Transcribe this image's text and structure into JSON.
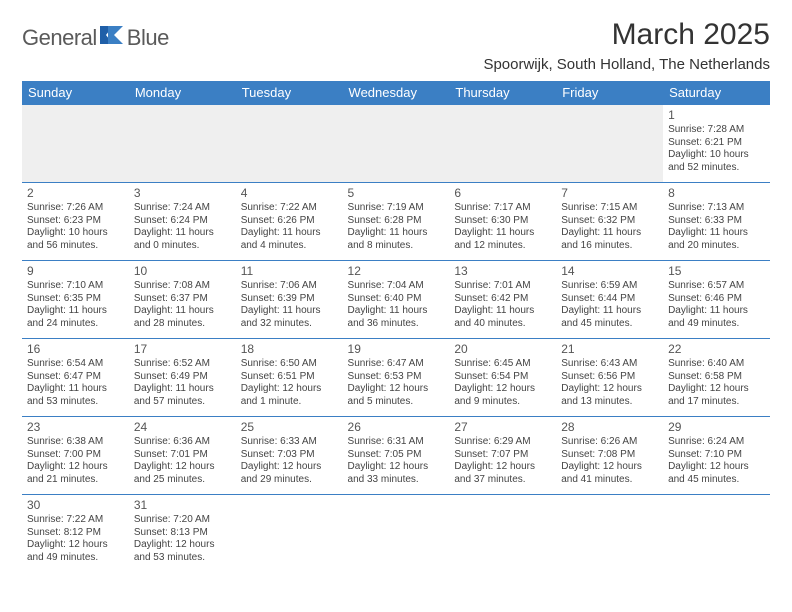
{
  "brand": {
    "name1": "General",
    "name2": "Blue"
  },
  "title": "March 2025",
  "location": "Spoorwijk, South Holland, The Netherlands",
  "colors": {
    "header_bg": "#3b7fc4",
    "header_fg": "#ffffff",
    "rule": "#3b7fc4",
    "empty_bg": "#efefef"
  },
  "daysOfWeek": [
    "Sunday",
    "Monday",
    "Tuesday",
    "Wednesday",
    "Thursday",
    "Friday",
    "Saturday"
  ],
  "weeks": [
    [
      null,
      null,
      null,
      null,
      null,
      null,
      {
        "n": "1",
        "sr": "Sunrise: 7:28 AM",
        "ss": "Sunset: 6:21 PM",
        "dl1": "Daylight: 10 hours",
        "dl2": "and 52 minutes."
      }
    ],
    [
      {
        "n": "2",
        "sr": "Sunrise: 7:26 AM",
        "ss": "Sunset: 6:23 PM",
        "dl1": "Daylight: 10 hours",
        "dl2": "and 56 minutes."
      },
      {
        "n": "3",
        "sr": "Sunrise: 7:24 AM",
        "ss": "Sunset: 6:24 PM",
        "dl1": "Daylight: 11 hours",
        "dl2": "and 0 minutes."
      },
      {
        "n": "4",
        "sr": "Sunrise: 7:22 AM",
        "ss": "Sunset: 6:26 PM",
        "dl1": "Daylight: 11 hours",
        "dl2": "and 4 minutes."
      },
      {
        "n": "5",
        "sr": "Sunrise: 7:19 AM",
        "ss": "Sunset: 6:28 PM",
        "dl1": "Daylight: 11 hours",
        "dl2": "and 8 minutes."
      },
      {
        "n": "6",
        "sr": "Sunrise: 7:17 AM",
        "ss": "Sunset: 6:30 PM",
        "dl1": "Daylight: 11 hours",
        "dl2": "and 12 minutes."
      },
      {
        "n": "7",
        "sr": "Sunrise: 7:15 AM",
        "ss": "Sunset: 6:32 PM",
        "dl1": "Daylight: 11 hours",
        "dl2": "and 16 minutes."
      },
      {
        "n": "8",
        "sr": "Sunrise: 7:13 AM",
        "ss": "Sunset: 6:33 PM",
        "dl1": "Daylight: 11 hours",
        "dl2": "and 20 minutes."
      }
    ],
    [
      {
        "n": "9",
        "sr": "Sunrise: 7:10 AM",
        "ss": "Sunset: 6:35 PM",
        "dl1": "Daylight: 11 hours",
        "dl2": "and 24 minutes."
      },
      {
        "n": "10",
        "sr": "Sunrise: 7:08 AM",
        "ss": "Sunset: 6:37 PM",
        "dl1": "Daylight: 11 hours",
        "dl2": "and 28 minutes."
      },
      {
        "n": "11",
        "sr": "Sunrise: 7:06 AM",
        "ss": "Sunset: 6:39 PM",
        "dl1": "Daylight: 11 hours",
        "dl2": "and 32 minutes."
      },
      {
        "n": "12",
        "sr": "Sunrise: 7:04 AM",
        "ss": "Sunset: 6:40 PM",
        "dl1": "Daylight: 11 hours",
        "dl2": "and 36 minutes."
      },
      {
        "n": "13",
        "sr": "Sunrise: 7:01 AM",
        "ss": "Sunset: 6:42 PM",
        "dl1": "Daylight: 11 hours",
        "dl2": "and 40 minutes."
      },
      {
        "n": "14",
        "sr": "Sunrise: 6:59 AM",
        "ss": "Sunset: 6:44 PM",
        "dl1": "Daylight: 11 hours",
        "dl2": "and 45 minutes."
      },
      {
        "n": "15",
        "sr": "Sunrise: 6:57 AM",
        "ss": "Sunset: 6:46 PM",
        "dl1": "Daylight: 11 hours",
        "dl2": "and 49 minutes."
      }
    ],
    [
      {
        "n": "16",
        "sr": "Sunrise: 6:54 AM",
        "ss": "Sunset: 6:47 PM",
        "dl1": "Daylight: 11 hours",
        "dl2": "and 53 minutes."
      },
      {
        "n": "17",
        "sr": "Sunrise: 6:52 AM",
        "ss": "Sunset: 6:49 PM",
        "dl1": "Daylight: 11 hours",
        "dl2": "and 57 minutes."
      },
      {
        "n": "18",
        "sr": "Sunrise: 6:50 AM",
        "ss": "Sunset: 6:51 PM",
        "dl1": "Daylight: 12 hours",
        "dl2": "and 1 minute."
      },
      {
        "n": "19",
        "sr": "Sunrise: 6:47 AM",
        "ss": "Sunset: 6:53 PM",
        "dl1": "Daylight: 12 hours",
        "dl2": "and 5 minutes."
      },
      {
        "n": "20",
        "sr": "Sunrise: 6:45 AM",
        "ss": "Sunset: 6:54 PM",
        "dl1": "Daylight: 12 hours",
        "dl2": "and 9 minutes."
      },
      {
        "n": "21",
        "sr": "Sunrise: 6:43 AM",
        "ss": "Sunset: 6:56 PM",
        "dl1": "Daylight: 12 hours",
        "dl2": "and 13 minutes."
      },
      {
        "n": "22",
        "sr": "Sunrise: 6:40 AM",
        "ss": "Sunset: 6:58 PM",
        "dl1": "Daylight: 12 hours",
        "dl2": "and 17 minutes."
      }
    ],
    [
      {
        "n": "23",
        "sr": "Sunrise: 6:38 AM",
        "ss": "Sunset: 7:00 PM",
        "dl1": "Daylight: 12 hours",
        "dl2": "and 21 minutes."
      },
      {
        "n": "24",
        "sr": "Sunrise: 6:36 AM",
        "ss": "Sunset: 7:01 PM",
        "dl1": "Daylight: 12 hours",
        "dl2": "and 25 minutes."
      },
      {
        "n": "25",
        "sr": "Sunrise: 6:33 AM",
        "ss": "Sunset: 7:03 PM",
        "dl1": "Daylight: 12 hours",
        "dl2": "and 29 minutes."
      },
      {
        "n": "26",
        "sr": "Sunrise: 6:31 AM",
        "ss": "Sunset: 7:05 PM",
        "dl1": "Daylight: 12 hours",
        "dl2": "and 33 minutes."
      },
      {
        "n": "27",
        "sr": "Sunrise: 6:29 AM",
        "ss": "Sunset: 7:07 PM",
        "dl1": "Daylight: 12 hours",
        "dl2": "and 37 minutes."
      },
      {
        "n": "28",
        "sr": "Sunrise: 6:26 AM",
        "ss": "Sunset: 7:08 PM",
        "dl1": "Daylight: 12 hours",
        "dl2": "and 41 minutes."
      },
      {
        "n": "29",
        "sr": "Sunrise: 6:24 AM",
        "ss": "Sunset: 7:10 PM",
        "dl1": "Daylight: 12 hours",
        "dl2": "and 45 minutes."
      }
    ],
    [
      {
        "n": "30",
        "sr": "Sunrise: 7:22 AM",
        "ss": "Sunset: 8:12 PM",
        "dl1": "Daylight: 12 hours",
        "dl2": "and 49 minutes."
      },
      {
        "n": "31",
        "sr": "Sunrise: 7:20 AM",
        "ss": "Sunset: 8:13 PM",
        "dl1": "Daylight: 12 hours",
        "dl2": "and 53 minutes."
      },
      null,
      null,
      null,
      null,
      null
    ]
  ]
}
